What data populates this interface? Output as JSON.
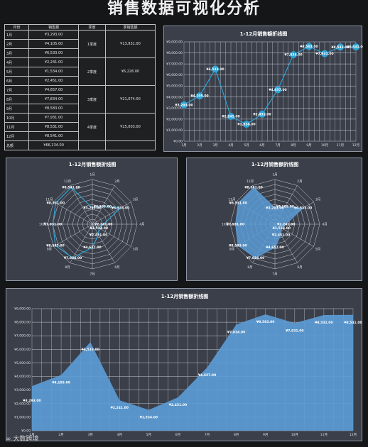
{
  "page": {
    "title": "销售数据可视化分析",
    "watermark": "大数跨境"
  },
  "table": {
    "headers": [
      "月份",
      "销售额",
      "季度",
      "季销售额"
    ],
    "rows": [
      {
        "month": "1月",
        "sales": "¥3,293.00"
      },
      {
        "month": "2月",
        "sales": "¥4,105.00"
      },
      {
        "month": "3月",
        "sales": "¥6,533.00"
      },
      {
        "month": "4月",
        "sales": "¥2,241.00"
      },
      {
        "month": "5月",
        "sales": "¥1,534.00"
      },
      {
        "month": "6月",
        "sales": "¥2,451.00"
      },
      {
        "month": "7月",
        "sales": "¥4,657.00"
      },
      {
        "month": "8月",
        "sales": "¥7,834.00"
      },
      {
        "month": "9月",
        "sales": "¥8,583.00"
      },
      {
        "month": "10月",
        "sales": "¥7,931.00"
      },
      {
        "month": "11月",
        "sales": "¥8,531.00"
      },
      {
        "month": "12月",
        "sales": "¥8,541.00"
      }
    ],
    "quarters": [
      {
        "label": "1季度",
        "value": "¥13,931.00"
      },
      {
        "label": "2季度",
        "value": "¥6,226.00"
      },
      {
        "label": "3季度",
        "value": "¥21,074.00"
      },
      {
        "label": "4季度",
        "value": "¥25,003.00"
      }
    ],
    "total_label": "总额",
    "total_value": "¥66,234.00"
  },
  "chart_data": [
    {
      "type": "line",
      "title": "1-12月销售额折线图",
      "categories": [
        "1月",
        "2月",
        "3月",
        "4月",
        "5月",
        "6月",
        "7月",
        "8月",
        "9月",
        "10月",
        "11月",
        "12月"
      ],
      "values": [
        3293,
        4105,
        6533,
        2241,
        1534,
        2451,
        4657,
        7834,
        8583,
        7931,
        8531,
        8541
      ],
      "data_labels": [
        "¥3,293.00",
        "¥4,105.00",
        "¥6,533.00",
        "¥2,241.00",
        "¥1,534.00",
        "¥2,451.00",
        "¥4,657.00",
        "¥7,834.00",
        "¥8,583.00",
        "¥7,931.00",
        "¥8,531.00",
        "¥8,541.00"
      ],
      "ylim": [
        0,
        9000
      ],
      "yticks": [
        "¥0.00",
        "¥1,000.00",
        "¥2,000.00",
        "¥3,000.00",
        "¥4,000.00",
        "¥5,000.00",
        "¥6,000.00",
        "¥7,000.00",
        "¥8,000.00",
        "¥9,000.00"
      ],
      "grid": true,
      "color": "#2fa3d6"
    },
    {
      "type": "radar",
      "title": "1-12月销售额折线图",
      "categories": [
        "1月",
        "2月",
        "3月",
        "4月",
        "5月",
        "6月",
        "7月",
        "8月",
        "9月",
        "10月",
        "11月",
        "12月"
      ],
      "values": [
        3293,
        4105,
        6533,
        2241,
        1534,
        2451,
        4657,
        7834,
        8583,
        7931,
        8531,
        8541
      ],
      "data_labels": [
        "¥3,293.00",
        "¥4,105.00",
        "¥6,533.00",
        "¥2,241.00",
        "¥1,534.00",
        "¥2,451.00",
        "¥4,657.00",
        "¥7,834.00",
        "¥8,583.00",
        "¥7,931.00",
        "¥8,531.00",
        "¥8,541.00"
      ],
      "ylim": [
        0,
        9000
      ],
      "filled": false,
      "color": "#2fa3d6"
    },
    {
      "type": "radar",
      "title": "1-12月销售额折线图",
      "categories": [
        "1月",
        "2月",
        "3月",
        "4月",
        "5月",
        "6月",
        "7月",
        "8月",
        "9月",
        "10月",
        "11月",
        "12月"
      ],
      "values": [
        3293,
        4105,
        6533,
        2241,
        1534,
        2451,
        4657,
        7834,
        8583,
        7931,
        8531,
        8541
      ],
      "data_labels": [
        "¥3,293.00",
        "¥4,105.00",
        "¥6,533.00",
        "¥2,241.00",
        "¥1,534.00",
        "¥2,451.00",
        "¥4,657.00",
        "¥7,834.00",
        "¥8,583.00",
        "¥7,931.00",
        "¥8,531.00",
        "¥8,541.00"
      ],
      "ylim": [
        0,
        9000
      ],
      "filled": true,
      "color": "#5b9bd5"
    },
    {
      "type": "area",
      "title": "1-12月销售额折线图",
      "categories": [
        "1月",
        "2月",
        "3月",
        "4月",
        "5月",
        "6月",
        "7月",
        "8月",
        "9月",
        "10月",
        "11月",
        "12月"
      ],
      "values": [
        3293,
        4105,
        6533,
        2241,
        1534,
        2451,
        4657,
        7834,
        8583,
        7931,
        8531,
        8541
      ],
      "data_labels": [
        "¥3,293.00",
        "¥4,105.00",
        "¥6,533.00",
        "¥2,241.00",
        "¥1,534.00",
        "¥2,451.00",
        "¥4,657.00",
        "¥7,834.00",
        "¥8,583.00",
        "¥7,931.00",
        "¥8,531.00",
        "¥8,541.00"
      ],
      "ylim": [
        0,
        9000
      ],
      "yticks": [
        "¥0.00",
        "¥1,000.00",
        "¥2,000.00",
        "¥3,000.00",
        "¥4,000.00",
        "¥5,000.00",
        "¥6,000.00",
        "¥7,000.00",
        "¥8,000.00",
        "¥9,000.00"
      ],
      "grid": true,
      "color": "#5b9bd5"
    }
  ]
}
